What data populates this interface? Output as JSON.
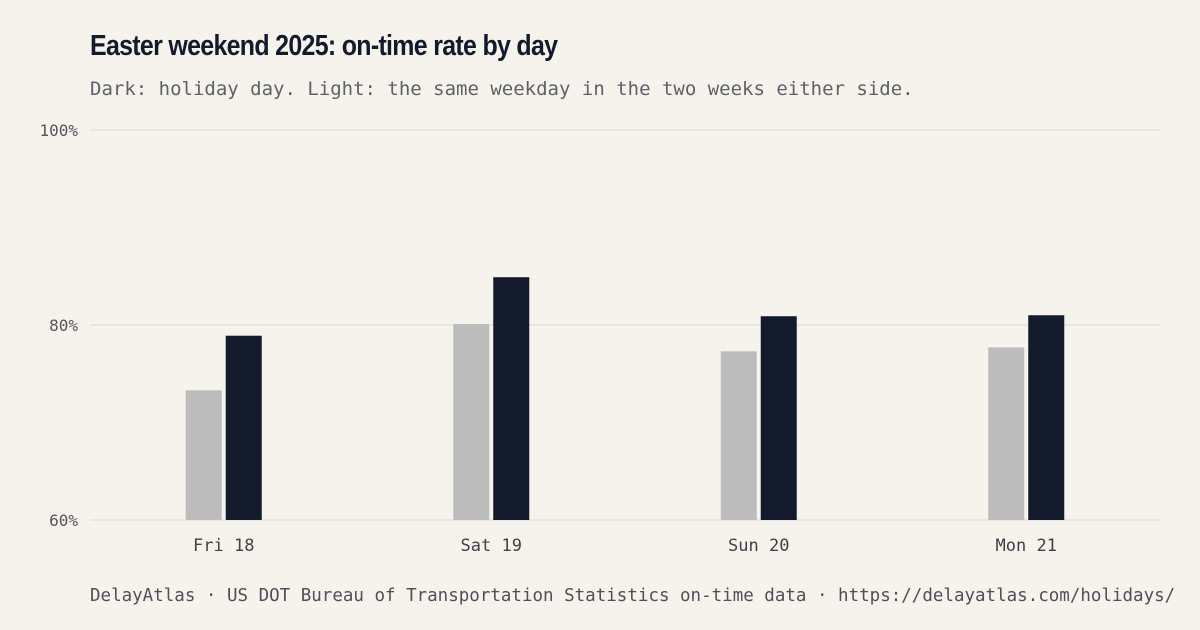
{
  "title": "Easter weekend 2025: on-time rate by day",
  "subtitle": "Dark: holiday day. Light: the same weekday in the two weeks either side.",
  "footer": "DelayAtlas · US DOT Bureau of Transportation Statistics on-time data · https://delayatlas.com/holidays/",
  "colors": {
    "background": "#f6f3ed",
    "holiday": "#121a2b",
    "baseline": "#bcbcbc",
    "grid": "#e4e1da",
    "tick_text": "#55565c"
  },
  "chart_data": {
    "type": "bar",
    "title": "Easter weekend 2025: on-time rate by day",
    "subtitle": "Dark: holiday day. Light: the same weekday in the two weeks either side.",
    "xlabel": "",
    "ylabel": "",
    "categories": [
      "Fri 18",
      "Sat 19",
      "Sun 20",
      "Mon 21"
    ],
    "series": [
      {
        "key": "baseline",
        "values": [
          73.3,
          80.1,
          77.3,
          77.7
        ]
      },
      {
        "key": "holiday",
        "values": [
          78.9,
          84.9,
          80.9,
          81.0
        ]
      }
    ],
    "ylim": [
      60,
      100
    ],
    "yticks": [
      60,
      80,
      100
    ],
    "ytick_labels": [
      "60%",
      "80%",
      "100%"
    ],
    "grid": "horizontal",
    "legend": "none"
  }
}
